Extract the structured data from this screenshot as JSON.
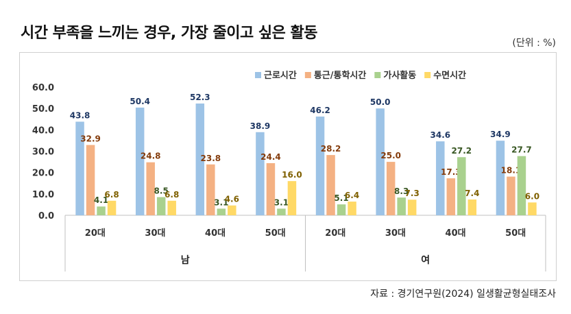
{
  "title": "시간 부족을 느끼는 경우, 가장 줄이고 싶은 활동",
  "unit": "(단위 : %)",
  "source": "자료 : 경기연구원(2024)  일생활균형실태조사",
  "chart_data": {
    "type": "bar",
    "ylim": [
      0,
      60
    ],
    "yticks": [
      "60.0",
      "50.0",
      "40.0",
      "30.0",
      "20.0",
      "10.0",
      "0.0"
    ],
    "categories": [
      "20대",
      "30대",
      "40대",
      "50대",
      "20대",
      "30대",
      "40대",
      "50대"
    ],
    "groups": [
      {
        "label": "남",
        "span": 4
      },
      {
        "label": "여",
        "span": 4
      }
    ],
    "legend_position": "top-right",
    "series": [
      {
        "name": "근로시간",
        "color": "#9DC3E6",
        "label_color": "#1F3864",
        "values": [
          43.8,
          50.4,
          52.3,
          38.9,
          46.2,
          50.0,
          34.6,
          34.9
        ],
        "labels": [
          "43.8",
          "50.4",
          "52.3",
          "38.9",
          "46.2",
          "50.0",
          "34.6",
          "34.9"
        ]
      },
      {
        "name": "통근/통학시간",
        "color": "#F4B183",
        "label_color": "#843C0C",
        "values": [
          32.9,
          24.8,
          23.8,
          24.4,
          28.2,
          25.0,
          17.3,
          18.1
        ],
        "labels": [
          "32.9",
          "24.8",
          "23.8",
          "24.4",
          "28.2",
          "25.0",
          "17.3",
          "18.1"
        ]
      },
      {
        "name": "가사활동",
        "color": "#A9D18E",
        "label_color": "#385723",
        "values": [
          4.1,
          8.5,
          3.1,
          3.1,
          5.1,
          8.3,
          27.2,
          27.7
        ],
        "labels": [
          "4.1",
          "8.5",
          "3.1",
          "3.1",
          "5.1",
          "8.3",
          "27.2",
          "27.7"
        ]
      },
      {
        "name": "수면시간",
        "color": "#FFD966",
        "label_color": "#7F6000",
        "values": [
          6.8,
          6.8,
          4.6,
          16.0,
          6.4,
          7.3,
          7.4,
          6.0
        ],
        "labels": [
          "6.8",
          "6.8",
          "4.6",
          "16.0",
          "6.4",
          "7.3",
          "7.4",
          "6.0"
        ]
      }
    ]
  }
}
